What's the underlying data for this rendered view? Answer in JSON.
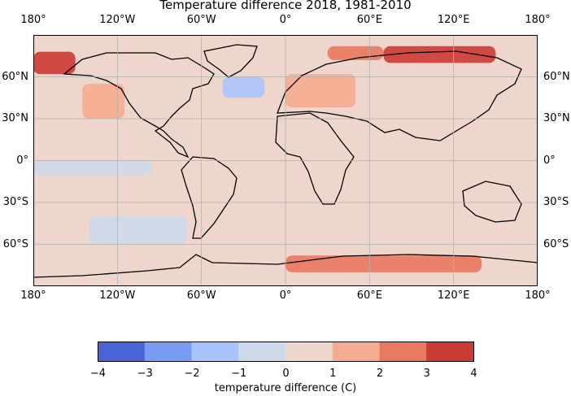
{
  "title": "Temperature difference 2018, 1981-2010",
  "lon_ticks": [
    "180°",
    "120°W",
    "60°W",
    "0°",
    "60°E",
    "120°E",
    "180°"
  ],
  "lat_ticks": [
    "60°N",
    "30°N",
    "0°",
    "30°S",
    "60°S"
  ],
  "colorbar": {
    "label": "temperature difference (C)",
    "ticks": [
      "−4",
      "−3",
      "−2",
      "−1",
      "0",
      "1",
      "2",
      "3",
      "4"
    ],
    "colors": [
      "#4b63d6",
      "#7b9cf4",
      "#a9c4fc",
      "#cdd8ea",
      "#efd6cc",
      "#f6ac90",
      "#e9795f",
      "#cc3b36"
    ]
  },
  "chart_data": {
    "type": "heatmap",
    "title": "Temperature difference 2018, 1981-2010",
    "projection": "PlateCarree",
    "xlim": [
      -180,
      180
    ],
    "ylim": [
      -90,
      90
    ],
    "grid": true,
    "colorbar_label": "temperature difference (C)",
    "levels": [
      -4,
      -3,
      -2,
      -1,
      0,
      1,
      2,
      3,
      4
    ],
    "background_level": [
      0,
      1
    ],
    "regions": [
      {
        "desc": "Arctic Siberia",
        "lon": [
          70,
          150
        ],
        "lat": [
          70,
          82
        ],
        "value": 3.5
      },
      {
        "desc": "Arctic Chukchi/Alaska",
        "lon": [
          -180,
          -150
        ],
        "lat": [
          62,
          78
        ],
        "value": 3.5
      },
      {
        "desc": "Arctic Barents",
        "lon": [
          30,
          70
        ],
        "lat": [
          72,
          82
        ],
        "value": 2.5
      },
      {
        "desc": "Europe",
        "lon": [
          0,
          50
        ],
        "lat": [
          38,
          62
        ],
        "value": 1.5
      },
      {
        "desc": "North Atlantic cold patch",
        "lon": [
          -45,
          -15
        ],
        "lat": [
          45,
          60
        ],
        "value": -1.5
      },
      {
        "desc": "Eastern North Pacific",
        "lon": [
          -145,
          -115
        ],
        "lat": [
          30,
          55
        ],
        "value": 1.5
      },
      {
        "desc": "Tropical Pacific cool band",
        "lon": [
          -180,
          -95
        ],
        "lat": [
          -10,
          0
        ],
        "value": -0.5
      },
      {
        "desc": "South Pacific cool",
        "lon": [
          -140,
          -70
        ],
        "lat": [
          -60,
          -40
        ],
        "value": -0.5
      },
      {
        "desc": "Antarctic warm",
        "lon": [
          0,
          140
        ],
        "lat": [
          -80,
          -68
        ],
        "value": 2.5
      }
    ]
  }
}
